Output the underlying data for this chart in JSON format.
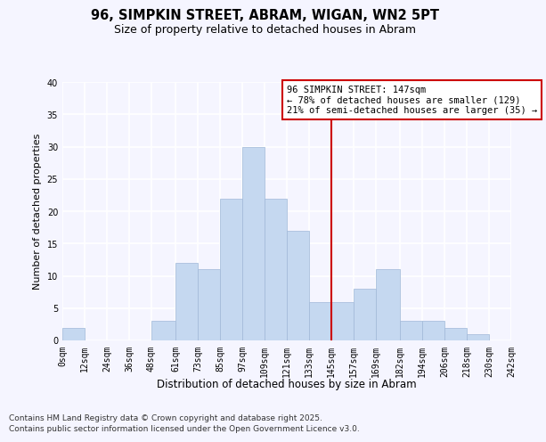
{
  "title": "96, SIMPKIN STREET, ABRAM, WIGAN, WN2 5PT",
  "subtitle": "Size of property relative to detached houses in Abram",
  "xlabel": "Distribution of detached houses by size in Abram",
  "ylabel": "Number of detached properties",
  "bin_edges": [
    0,
    12,
    24,
    36,
    48,
    61,
    73,
    85,
    97,
    109,
    121,
    133,
    145,
    157,
    169,
    182,
    194,
    206,
    218,
    230,
    242
  ],
  "bar_heights": [
    2,
    0,
    0,
    0,
    3,
    12,
    11,
    22,
    30,
    22,
    17,
    6,
    6,
    8,
    11,
    3,
    3,
    2,
    1,
    0
  ],
  "bar_color": "#c5d8f0",
  "bar_edge_color": "#a0b8d8",
  "bar_linewidth": 0.5,
  "reference_line_x": 145,
  "reference_line_color": "#cc0000",
  "ylim": [
    0,
    40
  ],
  "yticks": [
    0,
    5,
    10,
    15,
    20,
    25,
    30,
    35,
    40
  ],
  "xtick_labels": [
    "0sqm",
    "12sqm",
    "24sqm",
    "36sqm",
    "48sqm",
    "61sqm",
    "73sqm",
    "85sqm",
    "97sqm",
    "109sqm",
    "121sqm",
    "133sqm",
    "145sqm",
    "157sqm",
    "169sqm",
    "182sqm",
    "194sqm",
    "206sqm",
    "218sqm",
    "230sqm",
    "242sqm"
  ],
  "annotation_title": "96 SIMPKIN STREET: 147sqm",
  "annotation_line1": "← 78% of detached houses are smaller (129)",
  "annotation_line2": "21% of semi-detached houses are larger (35) →",
  "annotation_box_color": "#ffffff",
  "annotation_edge_color": "#cc0000",
  "footnote1": "Contains HM Land Registry data © Crown copyright and database right 2025.",
  "footnote2": "Contains public sector information licensed under the Open Government Licence v3.0.",
  "background_color": "#f5f5ff",
  "grid_color": "#ffffff",
  "title_fontsize": 10.5,
  "subtitle_fontsize": 9,
  "xlabel_fontsize": 8.5,
  "ylabel_fontsize": 8,
  "tick_fontsize": 7,
  "annotation_fontsize": 7.5,
  "footnote_fontsize": 6.5
}
